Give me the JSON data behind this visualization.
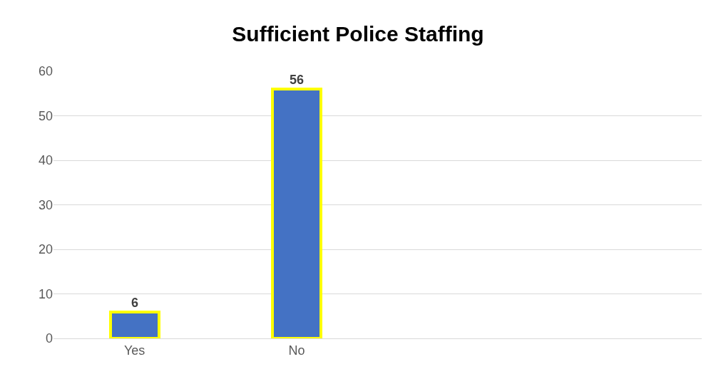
{
  "chart_data": {
    "type": "bar",
    "title": "Sufficient Police Staffing",
    "categories": [
      "Yes",
      "No",
      null,
      null
    ],
    "values": [
      6,
      56,
      null,
      null
    ],
    "color": "#4472c4",
    "ylim": [
      0,
      60
    ],
    "yticks": [
      0,
      10,
      20,
      30,
      40,
      50,
      60
    ],
    "grid": "y",
    "data_labels": true,
    "legend": false
  }
}
